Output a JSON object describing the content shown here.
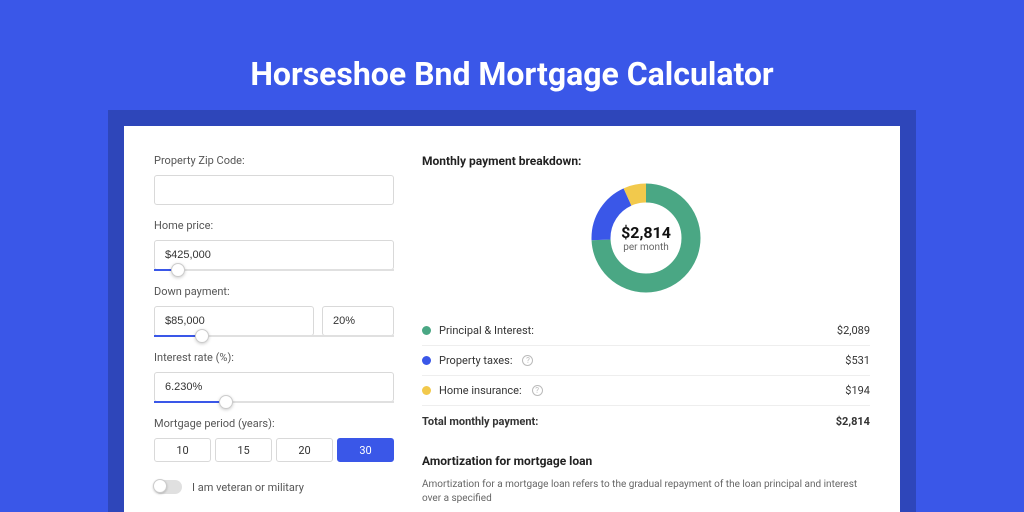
{
  "colors": {
    "outer_bg": "#3a57e8",
    "shadow_bg": "#2e46ba",
    "card_bg": "#ffffff",
    "accent": "#3a57e8",
    "donut_primary": "#4aa784",
    "donut_secondary": "#3a57e8",
    "donut_tertiary": "#f2c94c",
    "text_dark": "#222222",
    "text_body": "#555555"
  },
  "title": "Horseshoe Bnd Mortgage Calculator",
  "form": {
    "zip": {
      "label": "Property Zip Code:",
      "value": ""
    },
    "home_price": {
      "label": "Home price:",
      "value": "$425,000",
      "slider_pct": 10
    },
    "down_payment": {
      "label": "Down payment:",
      "value": "$85,000",
      "percent": "20%",
      "slider_pct": 20
    },
    "interest_rate": {
      "label": "Interest rate (%):",
      "value": "6.230%",
      "slider_pct": 30
    },
    "period": {
      "label": "Mortgage period (years):",
      "options": [
        "10",
        "15",
        "20",
        "30"
      ],
      "selected": "30"
    },
    "military": {
      "label": "I am veteran or military"
    }
  },
  "breakdown": {
    "title": "Monthly payment breakdown:",
    "donut": {
      "amount": "$2,814",
      "subtext": "per month",
      "slices": [
        {
          "color": "#4aa784",
          "pct": 74.2
        },
        {
          "color": "#3a57e8",
          "pct": 18.9
        },
        {
          "color": "#f2c94c",
          "pct": 6.9
        }
      ],
      "stroke_width": 19
    },
    "rows": [
      {
        "label": "Principal & Interest:",
        "color": "#4aa784",
        "value": "$2,089",
        "info": false
      },
      {
        "label": "Property taxes:",
        "color": "#3a57e8",
        "value": "$531",
        "info": true
      },
      {
        "label": "Home insurance:",
        "color": "#f2c94c",
        "value": "$194",
        "info": true
      }
    ],
    "total": {
      "label": "Total monthly payment:",
      "value": "$2,814"
    }
  },
  "amortization": {
    "title": "Amortization for mortgage loan",
    "text": "Amortization for a mortgage loan refers to the gradual repayment of the loan principal and interest over a specified"
  }
}
